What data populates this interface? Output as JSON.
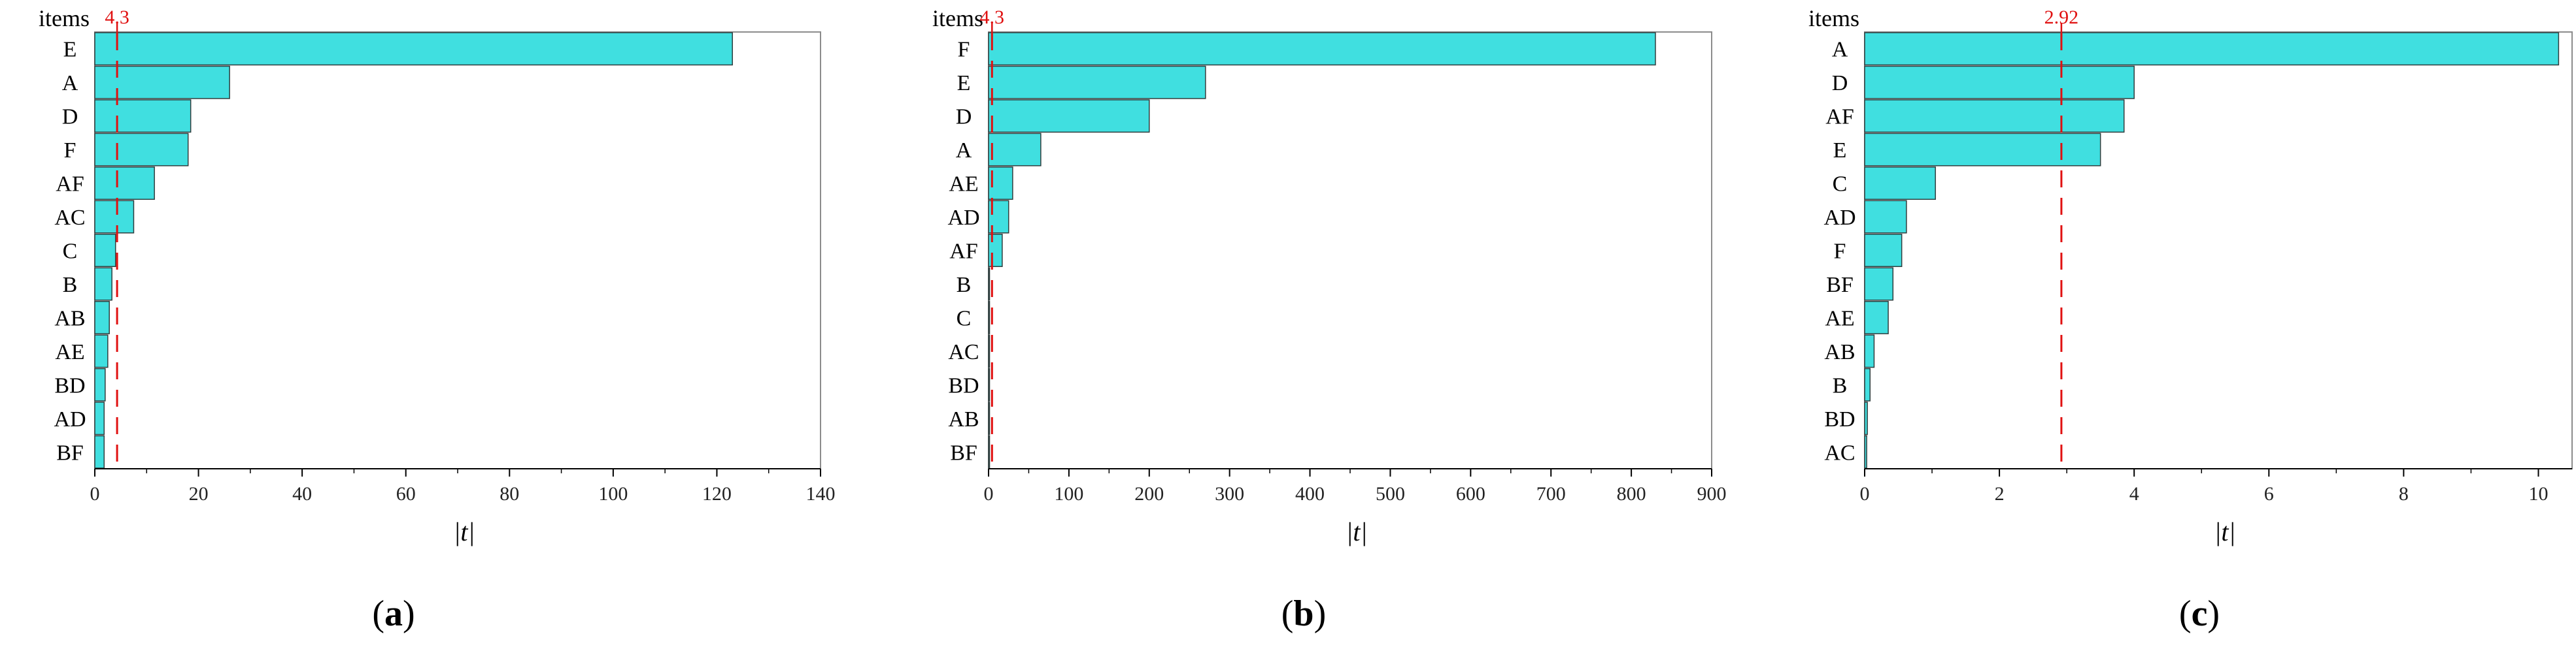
{
  "chart_data": [
    {
      "type": "bar",
      "orientation": "horizontal",
      "panel_label": "a",
      "y_title": "items",
      "xlabel": "|t|",
      "categories": [
        "E",
        "A",
        "D",
        "F",
        "AF",
        "AC",
        "C",
        "B",
        "AB",
        "AE",
        "BD",
        "AD",
        "BF"
      ],
      "values": [
        123,
        26,
        18.5,
        18,
        11.5,
        7.5,
        4,
        3.3,
        2.8,
        2.5,
        2,
        1.8,
        1.8
      ],
      "xlim": [
        0,
        140
      ],
      "xticks": [
        0,
        20,
        40,
        60,
        80,
        100,
        120,
        140
      ],
      "threshold": 4.3,
      "threshold_label": "4.3",
      "threshold_style": "dashed"
    },
    {
      "type": "bar",
      "orientation": "horizontal",
      "panel_label": "b",
      "y_title": "items",
      "xlabel": "|t|",
      "categories": [
        "F",
        "E",
        "D",
        "A",
        "AE",
        "AD",
        "AF",
        "B",
        "C",
        "AC",
        "BD",
        "AB",
        "BF"
      ],
      "values": [
        830,
        270,
        200,
        65,
        30,
        25,
        17,
        1,
        1,
        1,
        1,
        1,
        1
      ],
      "xlim": [
        0,
        900
      ],
      "xticks": [
        0,
        100,
        200,
        300,
        400,
        500,
        600,
        700,
        800,
        900
      ],
      "threshold": 4.3,
      "threshold_label": "4.3",
      "threshold_style": "dashed"
    },
    {
      "type": "bar",
      "orientation": "horizontal",
      "panel_label": "c",
      "y_title": "items",
      "xlabel": "|t|",
      "categories": [
        "A",
        "D",
        "AF",
        "E",
        "C",
        "AD",
        "F",
        "BF",
        "AE",
        "AB",
        "B",
        "BD",
        "AC"
      ],
      "values": [
        10.3,
        4.0,
        3.85,
        3.5,
        1.05,
        0.62,
        0.55,
        0.42,
        0.35,
        0.14,
        0.08,
        0.04,
        0.03
      ],
      "xlim": [
        0,
        10.5
      ],
      "xticks": [
        0,
        2,
        4,
        6,
        8,
        10
      ],
      "threshold": 2.92,
      "threshold_label": "2.92",
      "threshold_style": "dashed"
    }
  ],
  "colors": {
    "bar_fill": "#40dfe0",
    "bar_stroke": "#2f3e3e",
    "threshold": "#e01010",
    "axis": "#000000",
    "frame": "#8c8c8c"
  }
}
